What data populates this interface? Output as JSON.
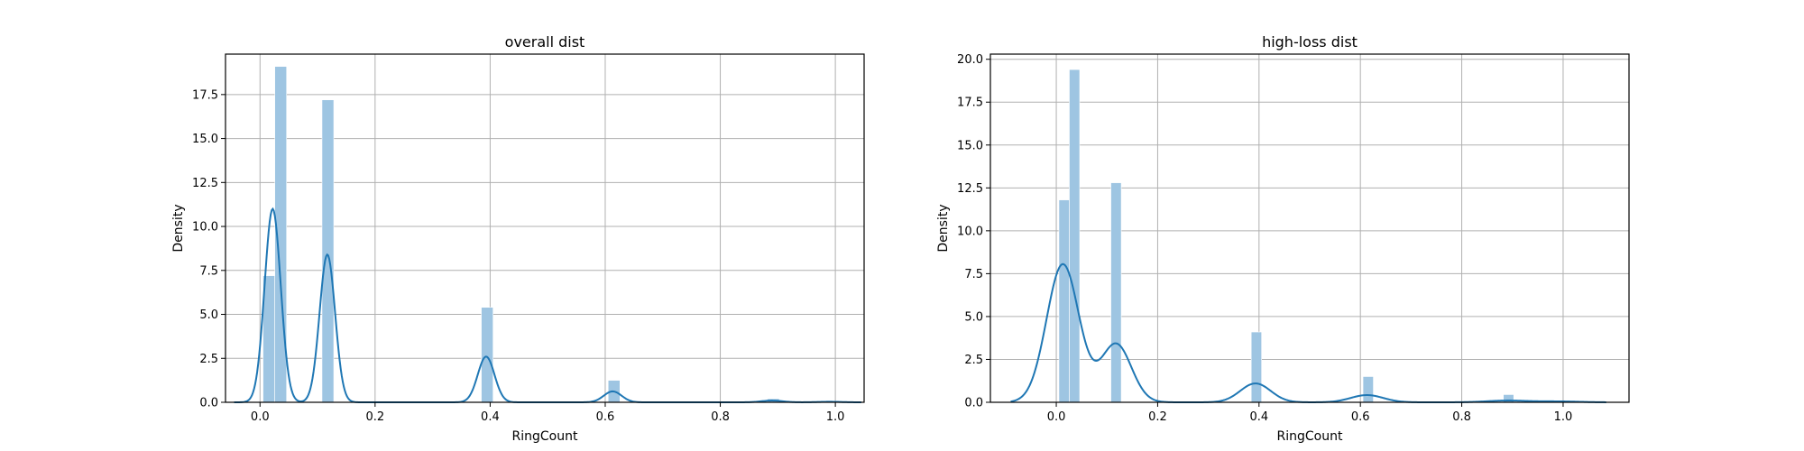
{
  "chart_data": [
    {
      "type": "histogram",
      "title": "overall dist",
      "xlabel": "RingCount",
      "ylabel": "Density",
      "xlim": [
        -0.06,
        1.05
      ],
      "ylim": [
        0,
        19.8
      ],
      "xticks": [
        0.0,
        0.2,
        0.4,
        0.6,
        0.8,
        1.0
      ],
      "xtick_labels": [
        "0.0",
        "0.2",
        "0.4",
        "0.6",
        "0.8",
        "1.0"
      ],
      "yticks": [
        0.0,
        2.5,
        5.0,
        7.5,
        10.0,
        12.5,
        15.0,
        17.5
      ],
      "ytick_labels": [
        "0.0",
        "2.5",
        "5.0",
        "7.5",
        "10.0",
        "12.5",
        "15.0",
        "17.5"
      ],
      "grid": true,
      "bar_color": "#9ec5e2",
      "line_color": "#1f77b4",
      "bins": [
        {
          "x0": 0.0052,
          "x1": 0.0257,
          "value": 7.2
        },
        {
          "x0": 0.0257,
          "x1": 0.0462,
          "value": 19.1
        },
        {
          "x0": 0.1077,
          "x1": 0.1282,
          "value": 17.2
        },
        {
          "x0": 0.3846,
          "x1": 0.4051,
          "value": 5.4
        },
        {
          "x0": 0.6051,
          "x1": 0.6256,
          "value": 1.25
        },
        {
          "x0": 0.8821,
          "x1": 0.9026,
          "value": 0.2
        },
        {
          "x0": 0.9846,
          "x1": 1.0051,
          "value": 0.03
        }
      ],
      "kde": {
        "peaks": [
          {
            "mu": 0.022,
            "sigma": 0.014,
            "height": 11.0
          },
          {
            "mu": 0.117,
            "sigma": 0.0135,
            "height": 8.4
          },
          {
            "mu": 0.393,
            "sigma": 0.0145,
            "height": 2.6
          },
          {
            "mu": 0.613,
            "sigma": 0.0155,
            "height": 0.62
          },
          {
            "mu": 0.89,
            "sigma": 0.018,
            "height": 0.1
          },
          {
            "mu": 0.99,
            "sigma": 0.02,
            "height": 0.03
          }
        ],
        "x_range": [
          -0.045,
          1.045
        ]
      }
    },
    {
      "type": "histogram",
      "title": "high-loss dist",
      "xlabel": "RingCount",
      "ylabel": "Density",
      "xlim": [
        -0.13,
        1.13
      ],
      "ylim": [
        0,
        20.3
      ],
      "xticks": [
        0.0,
        0.2,
        0.4,
        0.6,
        0.8,
        1.0
      ],
      "xtick_labels": [
        "0.0",
        "0.2",
        "0.4",
        "0.6",
        "0.8",
        "1.0"
      ],
      "yticks": [
        0.0,
        2.5,
        5.0,
        7.5,
        10.0,
        12.5,
        15.0,
        17.5,
        20.0
      ],
      "ytick_labels": [
        "0.0",
        "2.5",
        "5.0",
        "7.5",
        "10.0",
        "12.5",
        "15.0",
        "17.5",
        "20.0"
      ],
      "grid": true,
      "bar_color": "#9ec5e2",
      "line_color": "#1f77b4",
      "bins": [
        {
          "x0": 0.0052,
          "x1": 0.0257,
          "value": 11.8
        },
        {
          "x0": 0.0257,
          "x1": 0.0462,
          "value": 19.4
        },
        {
          "x0": 0.1077,
          "x1": 0.1282,
          "value": 12.8
        },
        {
          "x0": 0.3846,
          "x1": 0.4051,
          "value": 4.1
        },
        {
          "x0": 0.6051,
          "x1": 0.6256,
          "value": 1.5
        },
        {
          "x0": 0.8821,
          "x1": 0.9026,
          "value": 0.45
        }
      ],
      "kde": {
        "peaks": [
          {
            "mu": 0.013,
            "sigma": 0.032,
            "height": 8.05
          },
          {
            "mu": 0.118,
            "sigma": 0.03,
            "height": 3.4
          },
          {
            "mu": 0.393,
            "sigma": 0.03,
            "height": 1.1
          },
          {
            "mu": 0.613,
            "sigma": 0.032,
            "height": 0.42
          },
          {
            "mu": 0.89,
            "sigma": 0.04,
            "height": 0.1
          },
          {
            "mu": 0.99,
            "sigma": 0.04,
            "height": 0.05
          }
        ],
        "x_range": [
          -0.09,
          1.085
        ]
      }
    }
  ]
}
